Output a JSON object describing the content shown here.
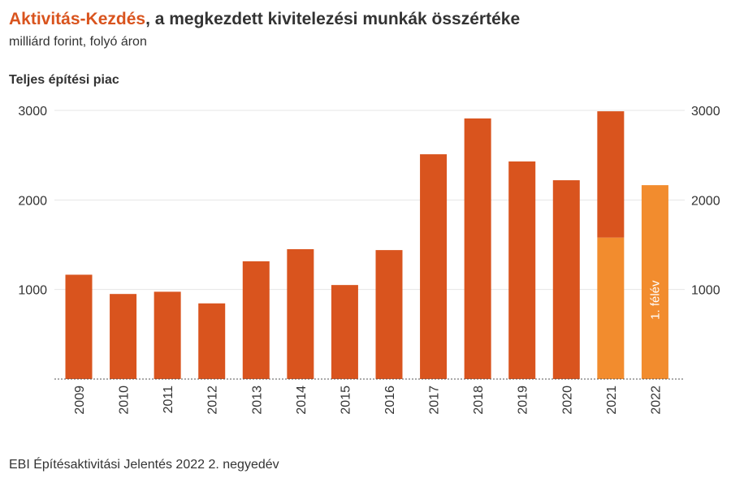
{
  "header": {
    "title_highlight": "Aktivitás-Kezdés",
    "title_rest": ", a megkezdett kivitelezési munkák összértéke",
    "subtitle": "milliárd forint, folyó áron",
    "panel_title": "Teljes építési piac"
  },
  "footer": {
    "source": "EBI Építésaktivitási Jelentés 2022 2. negyedév"
  },
  "colors": {
    "primary": "#d9541e",
    "secondary": "#f28c2e",
    "grid": "#e6e6e6",
    "text": "#333333"
  },
  "chart_data": {
    "type": "bar",
    "title": "",
    "xlabel": "",
    "ylabel": "",
    "ylim": [
      0,
      3000
    ],
    "yticks": [
      1000,
      2000,
      3000
    ],
    "grid": true,
    "categories": [
      "2009",
      "2010",
      "2011",
      "2012",
      "2013",
      "2014",
      "2015",
      "2016",
      "2017",
      "2018",
      "2019",
      "2020",
      "2021",
      "2022"
    ],
    "series": [
      {
        "values": [
          1165,
          950,
          975,
          845,
          1315,
          1450,
          1050,
          1440,
          2510,
          2910,
          2430,
          2220,
          1580,
          2165
        ]
      },
      {
        "values": [
          0,
          0,
          0,
          0,
          0,
          0,
          0,
          0,
          0,
          0,
          0,
          0,
          1410,
          0
        ]
      }
    ],
    "annotations": [
      {
        "category": "2022",
        "text": "1. félév"
      }
    ]
  }
}
